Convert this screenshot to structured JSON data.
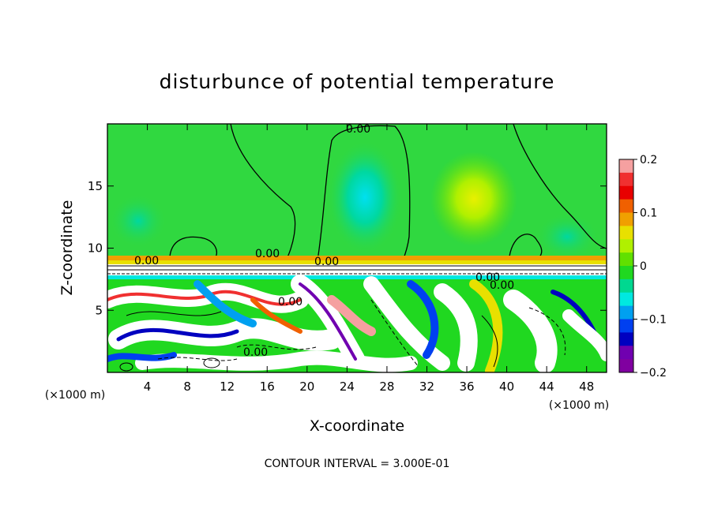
{
  "chart_data": {
    "type": "heatmap",
    "title": "disturbunce of potential temperature",
    "xlabel": "X-coordinate",
    "ylabel": "Z-coordinate",
    "x_unit": "(×1000 m)",
    "y_unit": "(×1000 m)",
    "xlim": [
      0,
      50
    ],
    "ylim": [
      0,
      20
    ],
    "x_ticks": [
      4,
      8,
      12,
      16,
      20,
      24,
      28,
      32,
      36,
      40,
      44,
      48
    ],
    "y_ticks": [
      5,
      10,
      15
    ],
    "colorbar": {
      "range": [
        -0.2,
        0.2
      ],
      "tick_labels": [
        "0.2",
        "0.1",
        "0",
        "−0.1",
        "−0.2"
      ],
      "tick_values": [
        0.2,
        0.1,
        0,
        -0.1,
        -0.2
      ],
      "colors": [
        "#f5a0a0",
        "#f03030",
        "#e80000",
        "#f06000",
        "#f0a000",
        "#e8e000",
        "#b0f000",
        "#60e000",
        "#20d820",
        "#00d890",
        "#00e8e0",
        "#00a0f0",
        "#0040f0",
        "#0000c0",
        "#7000b0",
        "#8000a0"
      ]
    },
    "contour_label": "0.00",
    "contour_interval_text": "CONTOUR INTERVAL = 3.000E-01",
    "grid": false
  }
}
